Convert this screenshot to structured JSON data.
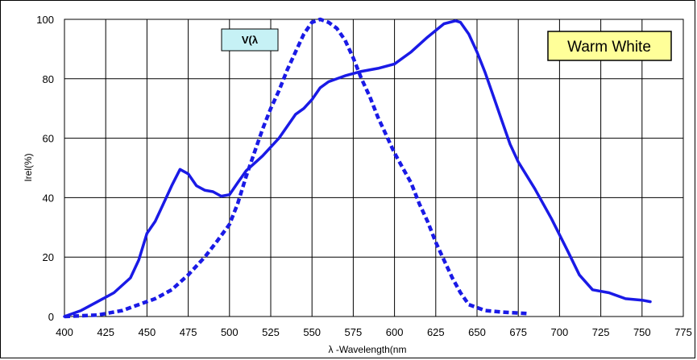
{
  "chart_data": {
    "type": "line",
    "title": "",
    "xlabel": "λ -Wavelength(nm",
    "ylabel": "Irel(%)",
    "xlim": [
      400,
      775
    ],
    "ylim": [
      0,
      100
    ],
    "x_ticks": [
      400,
      425,
      450,
      475,
      500,
      525,
      550,
      575,
      600,
      625,
      650,
      675,
      700,
      725,
      750,
      775
    ],
    "y_ticks": [
      0,
      20,
      40,
      60,
      80,
      100
    ],
    "grid": true,
    "annotations": {
      "vlambda_label": "V(λ",
      "warm_white_label": "Warm White"
    },
    "colors": {
      "line": "#1a1ae6",
      "vlambda_box_fill": "#c6f1f5",
      "warm_white_box_fill": "#ffff99",
      "grid": "#000000"
    },
    "series": [
      {
        "style": "solid",
        "points": [
          [
            400,
            0
          ],
          [
            410,
            2
          ],
          [
            420,
            5
          ],
          [
            430,
            8
          ],
          [
            440,
            13
          ],
          [
            445,
            19
          ],
          [
            450,
            28
          ],
          [
            455,
            32
          ],
          [
            460,
            38
          ],
          [
            465,
            44
          ],
          [
            470,
            49.5
          ],
          [
            475,
            48
          ],
          [
            480,
            44
          ],
          [
            485,
            42.5
          ],
          [
            490,
            42
          ],
          [
            495,
            40.5
          ],
          [
            500,
            41
          ],
          [
            505,
            45
          ],
          [
            510,
            49
          ],
          [
            520,
            54
          ],
          [
            530,
            60
          ],
          [
            540,
            68
          ],
          [
            545,
            70
          ],
          [
            550,
            73
          ],
          [
            555,
            77
          ],
          [
            560,
            79
          ],
          [
            570,
            81
          ],
          [
            580,
            82.5
          ],
          [
            590,
            83.5
          ],
          [
            600,
            85
          ],
          [
            610,
            89
          ],
          [
            620,
            94
          ],
          [
            630,
            98.5
          ],
          [
            637,
            99.5
          ],
          [
            640,
            99
          ],
          [
            645,
            95
          ],
          [
            650,
            89
          ],
          [
            655,
            82
          ],
          [
            660,
            74
          ],
          [
            665,
            66
          ],
          [
            670,
            58
          ],
          [
            675,
            52
          ],
          [
            685,
            43
          ],
          [
            695,
            33
          ],
          [
            705,
            22
          ],
          [
            712,
            14
          ],
          [
            720,
            9
          ],
          [
            730,
            8
          ],
          [
            740,
            6
          ],
          [
            750,
            5.5
          ],
          [
            755,
            5
          ]
        ]
      },
      {
        "style": "dashed",
        "points": [
          [
            400,
            0
          ],
          [
            420,
            0.5
          ],
          [
            435,
            2
          ],
          [
            445,
            4
          ],
          [
            455,
            6
          ],
          [
            465,
            9
          ],
          [
            475,
            14
          ],
          [
            485,
            20
          ],
          [
            492,
            25
          ],
          [
            500,
            31
          ],
          [
            505,
            38
          ],
          [
            510,
            47
          ],
          [
            515,
            55
          ],
          [
            520,
            63
          ],
          [
            525,
            70
          ],
          [
            530,
            76
          ],
          [
            535,
            83
          ],
          [
            540,
            89
          ],
          [
            545,
            95
          ],
          [
            550,
            99
          ],
          [
            555,
            100
          ],
          [
            560,
            99
          ],
          [
            565,
            97
          ],
          [
            570,
            93
          ],
          [
            575,
            87
          ],
          [
            580,
            80
          ],
          [
            585,
            74
          ],
          [
            590,
            67
          ],
          [
            595,
            61
          ],
          [
            600,
            55
          ],
          [
            605,
            50
          ],
          [
            610,
            45
          ],
          [
            615,
            38
          ],
          [
            620,
            32
          ],
          [
            625,
            25
          ],
          [
            630,
            19
          ],
          [
            635,
            13
          ],
          [
            640,
            8
          ],
          [
            645,
            4
          ],
          [
            655,
            2
          ],
          [
            665,
            1.5
          ],
          [
            680,
            1
          ]
        ]
      }
    ]
  }
}
